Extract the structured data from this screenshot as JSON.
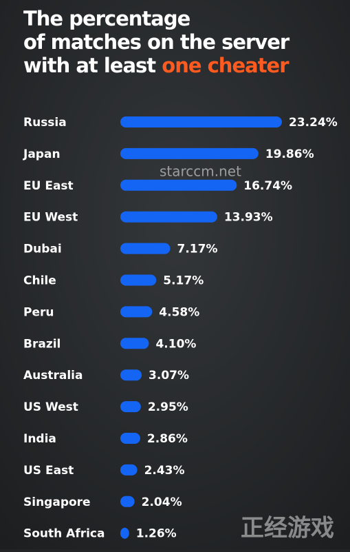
{
  "chart_data": {
    "type": "bar",
    "orientation": "horizontal",
    "title_lines": [
      "The percentage",
      "of matches on the server",
      "with at least"
    ],
    "title_highlight": "one cheater",
    "categories": [
      "Russia",
      "Japan",
      "EU East",
      "EU West",
      "Dubai",
      "Chile",
      "Peru",
      "Brazil",
      "Australia",
      "US West",
      "India",
      "US East",
      "Singapore",
      "South Africa"
    ],
    "values": [
      23.24,
      19.86,
      16.74,
      13.93,
      7.17,
      5.17,
      4.58,
      4.1,
      3.07,
      2.95,
      2.86,
      2.43,
      2.04,
      1.26
    ],
    "value_labels": [
      "23.24%",
      "19.86%",
      "16.74%",
      "13.93%",
      "7.17%",
      "5.17%",
      "4.58%",
      "4.10%",
      "3.07%",
      "2.95%",
      "2.86%",
      "2.43%",
      "2.04%",
      "1.26%"
    ],
    "color": "#1565f5",
    "highlight_color": "#ff5a1f"
  },
  "watermarks": [
    "starccm.net",
    "正经游戏"
  ]
}
